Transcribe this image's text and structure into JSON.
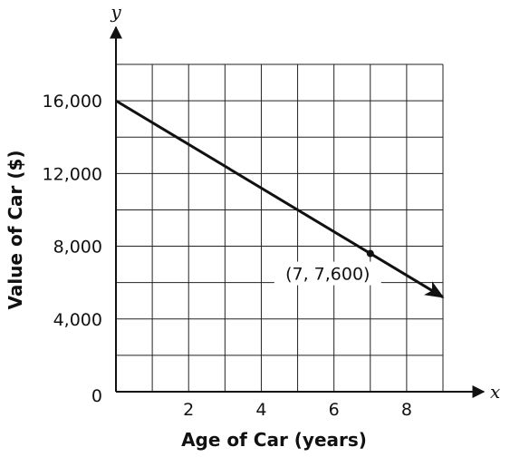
{
  "chart_data": {
    "type": "line",
    "xlabel": "Age of Car (years)",
    "ylabel": "Value of Car ($)",
    "x_axis_var": "x",
    "y_axis_var": "y",
    "xlim": [
      0,
      9
    ],
    "ylim": [
      0,
      18000
    ],
    "x_grid_step": 1,
    "y_grid_step": 2000,
    "x_ticks": [
      2,
      4,
      6,
      8
    ],
    "x_tick_labels": [
      "2",
      "4",
      "6",
      "8"
    ],
    "y_ticks": [
      4000,
      8000,
      12000,
      16000
    ],
    "y_tick_labels": [
      "4,000",
      "8,000",
      "12,000",
      "16,000"
    ],
    "origin_label": "0",
    "grid": true,
    "series": [
      {
        "x": [
          0,
          9
        ],
        "y": [
          16000,
          5200
        ],
        "arrow_end": true,
        "color": "#111111"
      }
    ],
    "points": [
      {
        "x": 7,
        "y": 7600,
        "label": "(7, 7,600)"
      }
    ]
  }
}
